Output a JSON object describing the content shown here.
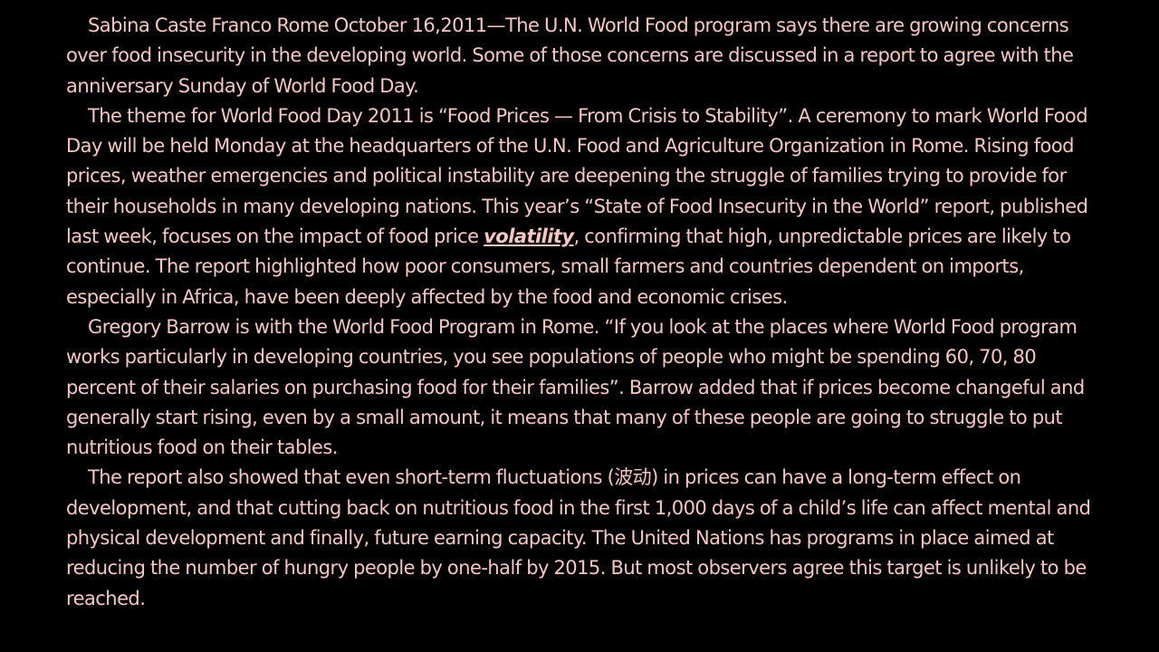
{
  "colors": {
    "background": "#000000",
    "text": "#f4c7c3"
  },
  "paragraphs": [
    {
      "text": "Sabina Caste Franco Rome October 16,2011—The U.N. World Food program says there are growing concerns over food insecurity in the developing world. Some of those concerns are discussed in a report to agree with the anniversary Sunday of World Food Day."
    },
    {
      "text": "The theme for World Food Day 2011 is “Food Prices — From Crisis to Stability”. A ceremony to mark World Food Day will be held Monday at the headquarters of the U.N. Food and Agriculture Organization in Rome. Rising food prices, weather emergencies and political instability are deepening the struggle of families trying to provide for their households in many developing nations. This year’s “State of Food Insecurity in the World” report, published last week, focuses on the impact of food price ",
      "keyword": "volatility",
      "after": ", confirming that high, unpredictable prices are likely to continue. The report highlighted how poor consumers, small farmers and countries dependent on imports, especially in Africa, have been deeply affected by the food and economic crises."
    },
    {
      "text": "Gregory Barrow is with the World Food Program in Rome. “If you look at the places where World Food program works particularly in developing countries, you see populations of people who might be spending 60, 70, 80 percent of their salaries on purchasing food for their families”. Barrow added that if prices become changeful and generally start rising, even by a small amount, it means that many of these people are going to struggle to put nutritious food on their tables."
    },
    {
      "text": "The report also showed that even short-term fluctuations (波动) in prices can have a long-term effect on development, and that cutting back on nutritious food in the first 1,000 days of a child’s life can affect mental and physical development and finally, future earning capacity. The United Nations has programs in place aimed at reducing the number of hungry people by one-half by 2015. But most observers agree this target is unlikely to be reached."
    }
  ]
}
